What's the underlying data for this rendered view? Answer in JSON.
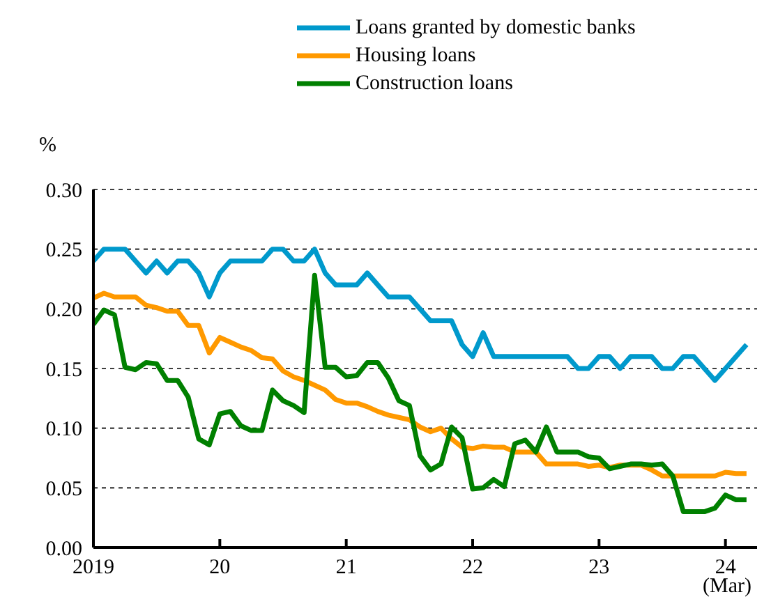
{
  "chart_data": {
    "type": "line",
    "ylabel": "%",
    "legend": "top",
    "grid": "y",
    "marker": "none",
    "line_style": "solid",
    "x": [
      "2019-01",
      "2019-02",
      "2019-03",
      "2019-04",
      "2019-05",
      "2019-06",
      "2019-07",
      "2019-08",
      "2019-09",
      "2019-10",
      "2019-11",
      "2019-12",
      "2020-01",
      "2020-02",
      "2020-03",
      "2020-04",
      "2020-05",
      "2020-06",
      "2020-07",
      "2020-08",
      "2020-09",
      "2020-10",
      "2020-11",
      "2020-12",
      "2021-01",
      "2021-02",
      "2021-03",
      "2021-04",
      "2021-05",
      "2021-06",
      "2021-07",
      "2021-08",
      "2021-09",
      "2021-10",
      "2021-11",
      "2021-12",
      "2022-01",
      "2022-02",
      "2022-03",
      "2022-04",
      "2022-05",
      "2022-06",
      "2022-07",
      "2022-08",
      "2022-09",
      "2022-10",
      "2022-11",
      "2022-12",
      "2023-01",
      "2023-02",
      "2023-03",
      "2023-04",
      "2023-05",
      "2023-06",
      "2023-07",
      "2023-08",
      "2023-09",
      "2023-10",
      "2023-11",
      "2023-12",
      "2024-01",
      "2024-02",
      "2024-03"
    ],
    "series": [
      {
        "name": "Loans granted by domestic banks",
        "color": "#0099cc",
        "values": [
          0.24,
          0.25,
          0.25,
          0.25,
          0.24,
          0.23,
          0.24,
          0.23,
          0.24,
          0.24,
          0.23,
          0.21,
          0.23,
          0.24,
          0.24,
          0.24,
          0.24,
          0.25,
          0.25,
          0.24,
          0.24,
          0.25,
          0.23,
          0.22,
          0.22,
          0.22,
          0.23,
          0.22,
          0.21,
          0.21,
          0.21,
          0.2,
          0.19,
          0.19,
          0.19,
          0.17,
          0.16,
          0.18,
          0.16,
          0.16,
          0.16,
          0.16,
          0.16,
          0.16,
          0.16,
          0.16,
          0.15,
          0.15,
          0.16,
          0.16,
          0.15,
          0.16,
          0.16,
          0.16,
          0.15,
          0.15,
          0.16,
          0.16,
          0.15,
          0.14,
          0.15,
          0.16,
          0.17
        ]
      },
      {
        "name": "Housing loans",
        "color": "#ff9900",
        "values": [
          0.209,
          0.213,
          0.21,
          0.21,
          0.21,
          0.203,
          0.201,
          0.198,
          0.198,
          0.186,
          0.186,
          0.163,
          0.176,
          0.172,
          0.168,
          0.165,
          0.159,
          0.158,
          0.148,
          0.143,
          0.14,
          0.136,
          0.132,
          0.124,
          0.121,
          0.121,
          0.118,
          0.114,
          0.111,
          0.109,
          0.107,
          0.101,
          0.097,
          0.1,
          0.091,
          0.084,
          0.083,
          0.085,
          0.084,
          0.084,
          0.08,
          0.08,
          0.08,
          0.07,
          0.07,
          0.07,
          0.07,
          0.068,
          0.069,
          0.067,
          0.069,
          0.069,
          0.069,
          0.065,
          0.06,
          0.06,
          0.06,
          0.06,
          0.06,
          0.06,
          0.063,
          0.062,
          0.062
        ]
      },
      {
        "name": "Construction loans",
        "color": "#008000",
        "values": [
          0.187,
          0.199,
          0.195,
          0.151,
          0.149,
          0.155,
          0.154,
          0.14,
          0.14,
          0.126,
          0.091,
          0.086,
          0.112,
          0.114,
          0.102,
          0.098,
          0.098,
          0.132,
          0.123,
          0.119,
          0.113,
          0.228,
          0.151,
          0.151,
          0.143,
          0.144,
          0.155,
          0.155,
          0.142,
          0.123,
          0.119,
          0.077,
          0.065,
          0.07,
          0.101,
          0.092,
          0.049,
          0.05,
          0.057,
          0.051,
          0.087,
          0.09,
          0.08,
          0.101,
          0.08,
          0.08,
          0.08,
          0.076,
          0.075,
          0.066,
          0.068,
          0.07,
          0.07,
          0.069,
          0.07,
          0.06,
          0.03,
          0.03,
          0.03,
          0.033,
          0.044,
          0.04,
          0.04
        ]
      }
    ],
    "xlim": [
      "2019-01",
      "2024-04"
    ],
    "xticks": [
      {
        "value": "2019",
        "label": "2019"
      },
      {
        "value": "2020",
        "label": "20"
      },
      {
        "value": "2021",
        "label": "21"
      },
      {
        "value": "2022",
        "label": "22"
      },
      {
        "value": "2023",
        "label": "23"
      },
      {
        "value": "2024",
        "label": "24"
      }
    ],
    "ylim": [
      0,
      0.3
    ],
    "yticks": [
      {
        "value": 0,
        "label": "0.00"
      },
      {
        "value": 0.05,
        "label": "0.05"
      },
      {
        "value": 0.1,
        "label": "0.10"
      },
      {
        "value": 0.15,
        "label": "0.15"
      },
      {
        "value": 0.2,
        "label": "0.20"
      },
      {
        "value": 0.25,
        "label": "0.25"
      },
      {
        "value": 0.3,
        "label": "0.30"
      }
    ],
    "annotations": [
      "(Mar)"
    ]
  }
}
